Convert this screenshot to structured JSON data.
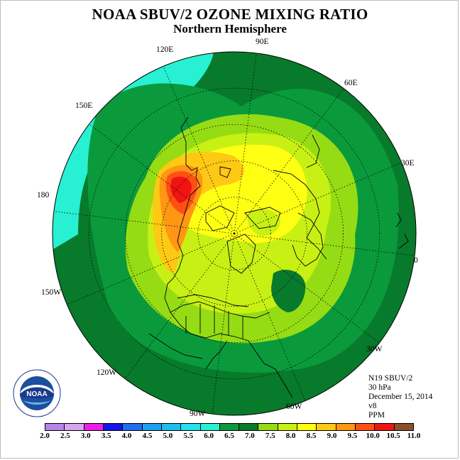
{
  "title": "NOAA SBUV/2 OZONE MIXING RATIO",
  "subtitle": "Northern Hemisphere",
  "info": {
    "satellite": "N19 SBUV/2",
    "level": "30 hPa",
    "date": "December 15, 2014",
    "version": "v8",
    "units": "PPM"
  },
  "longitude_labels": [
    "90E",
    "60E",
    "30E",
    "0",
    "30W",
    "60W",
    "90W",
    "120W",
    "150W",
    "180",
    "150E",
    "120E"
  ],
  "colorbar": {
    "ticks": [
      "2.0",
      "2.5",
      "3.0",
      "3.5",
      "4.0",
      "4.5",
      "5.0",
      "5.5",
      "6.0",
      "6.5",
      "7.0",
      "7.5",
      "8.0",
      "8.5",
      "9.0",
      "9.5",
      "10.0",
      "10.5",
      "11.0"
    ],
    "colors": [
      "#b784e8",
      "#d8a4f0",
      "#ee1ee8",
      "#1414e8",
      "#1e6ef0",
      "#1ea0f0",
      "#1ebef0",
      "#24e0f0",
      "#28f0d2",
      "#0a9a3c",
      "#087a2c",
      "#96dc14",
      "#c8f014",
      "#ffff14",
      "#ffc814",
      "#ff9614",
      "#ff5014",
      "#f01414",
      "#8c5028"
    ]
  },
  "logo_text": "NOAA",
  "logo_ring_text": "NATIONAL OCEANIC AND ATMOSPHERIC ADMINISTRATION · U.S. DEPARTMENT OF COMMERCE"
}
